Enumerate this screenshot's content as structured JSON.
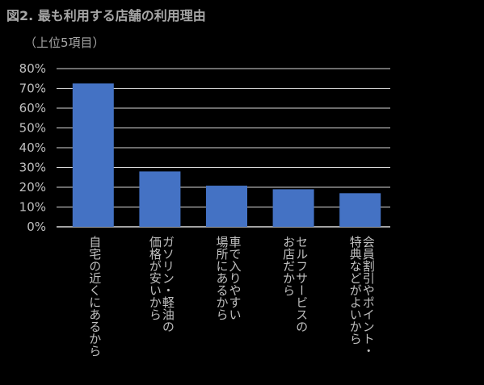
{
  "chart_data": {
    "type": "bar",
    "title": "図2. 最も利用する店舗の利用理由",
    "subtitle": "（上位5項目）",
    "categories": [
      "自宅の近くにあるから",
      "価格が安いから",
      "場所にあるから",
      "お店だから",
      "特典などがよいから"
    ],
    "category_label_lines": [
      [
        "自宅の近くにあるから"
      ],
      [
        "ガソリン・軽油の",
        "価格が安いから"
      ],
      [
        "車で入りやすい",
        "場所にあるから"
      ],
      [
        "セルフサービスの",
        "お店だから"
      ],
      [
        "会員割引やポイント・",
        "特典などがよいから"
      ]
    ],
    "values": [
      72.5,
      28,
      20.8,
      19,
      17
    ],
    "ylim": [
      0,
      80
    ],
    "yticks": [
      0,
      10,
      20,
      30,
      40,
      50,
      60,
      70,
      80
    ],
    "ytick_format": "%",
    "xlabel": "",
    "ylabel": "",
    "grid": true,
    "legend": "none",
    "colors": {
      "bar": "#4472c4",
      "grid": "#d9d9d9",
      "background": "#000000",
      "text": "#bfbfbf"
    }
  }
}
